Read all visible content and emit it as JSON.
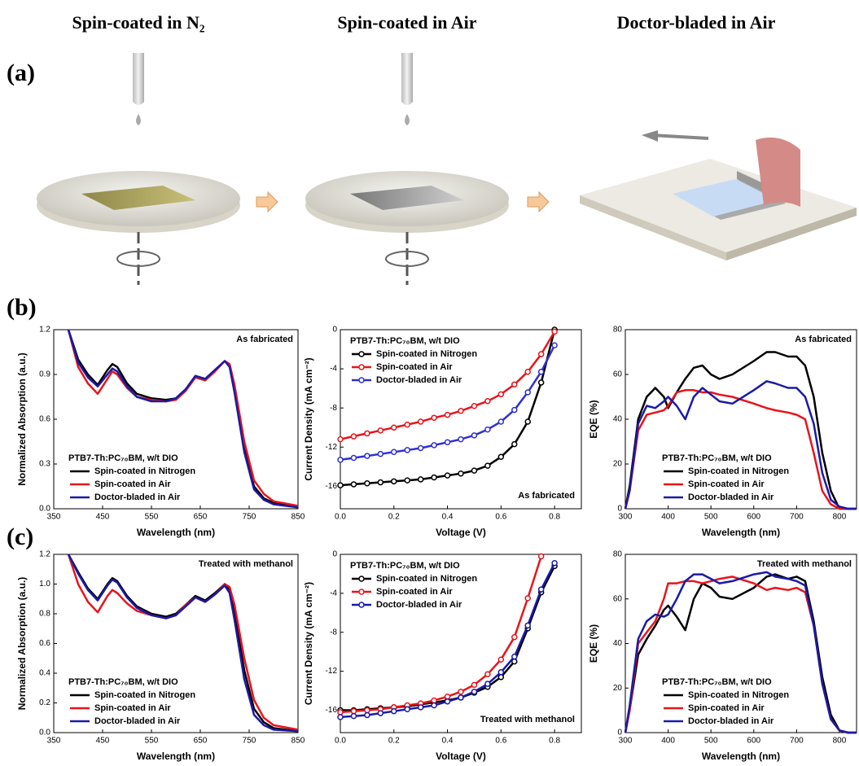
{
  "figure": {
    "headers": [
      "Spin-coated in N₂",
      "Spin-coated in Air",
      "Doctor-bladed in Air"
    ],
    "panel_labels": [
      "(a)",
      "(b)",
      "(c)"
    ]
  },
  "chart_data": [
    {
      "type": "line",
      "xlabel": "Wavelength (nm)",
      "ylabel": "Normalized Absorption (a.u.)",
      "annotation": "As fabricated",
      "legend_title": "PTB7-Th:PC₇₀BM, w/t DIO",
      "legend": "lower left",
      "x": [
        380,
        400,
        420,
        440,
        460,
        470,
        480,
        500,
        520,
        550,
        580,
        600,
        620,
        640,
        660,
        680,
        700,
        710,
        720,
        740,
        760,
        780,
        800,
        850
      ],
      "xlim": [
        350,
        850
      ],
      "xticks": [
        350,
        450,
        550,
        650,
        750,
        850
      ],
      "ylim": [
        0,
        1.2
      ],
      "yticks": [
        {
          "value": 0,
          "label": "0.0"
        },
        0.3,
        0.6,
        0.9,
        1.2
      ],
      "series": [
        {
          "name": "Spin-coated in Nitrogen",
          "color": "#000000",
          "values": [
            1.2,
            1.0,
            0.9,
            0.83,
            0.93,
            0.97,
            0.95,
            0.84,
            0.77,
            0.74,
            0.73,
            0.74,
            0.8,
            0.89,
            0.87,
            0.93,
            0.99,
            0.96,
            0.8,
            0.4,
            0.15,
            0.07,
            0.04,
            0.01
          ]
        },
        {
          "name": "Spin-coated in Air",
          "color": "#e8141b",
          "values": [
            1.2,
            0.95,
            0.84,
            0.77,
            0.87,
            0.92,
            0.9,
            0.81,
            0.75,
            0.73,
            0.72,
            0.73,
            0.79,
            0.88,
            0.86,
            0.92,
            0.99,
            0.97,
            0.83,
            0.45,
            0.19,
            0.1,
            0.05,
            0.02
          ]
        },
        {
          "name": "Doctor-bladed in Air",
          "color": "#1a1aa8",
          "values": [
            1.2,
            0.98,
            0.88,
            0.82,
            0.9,
            0.94,
            0.92,
            0.82,
            0.75,
            0.72,
            0.72,
            0.74,
            0.8,
            0.89,
            0.87,
            0.93,
            0.99,
            0.95,
            0.78,
            0.38,
            0.13,
            0.06,
            0.03,
            0.01
          ]
        }
      ]
    },
    {
      "type": "line",
      "markers": true,
      "xlabel": "Voltage (V)",
      "ylabel": "Current Density (mA cm⁻²)",
      "annotation": "As fabricated",
      "legend_title": "PTB7-Th:PC₇₀BM, w/t DIO",
      "legend": "upper left",
      "x": [
        0,
        0.05,
        0.1,
        0.15,
        0.2,
        0.25,
        0.3,
        0.35,
        0.4,
        0.45,
        0.5,
        0.55,
        0.6,
        0.65,
        0.7,
        0.75,
        0.8
      ],
      "xlim": [
        0,
        0.9
      ],
      "xticks": [
        {
          "value": 0,
          "label": "0.0"
        },
        0.2,
        0.4,
        0.6,
        0.8
      ],
      "ylim": [
        -18.3,
        0
      ],
      "yticks": [
        0,
        -4,
        -8,
        -12,
        -16
      ],
      "series": [
        {
          "name": "Spin-coated in Nitrogen",
          "color": "#000000",
          "values": [
            -15.9,
            -15.8,
            -15.7,
            -15.6,
            -15.5,
            -15.4,
            -15.3,
            -15.1,
            -14.9,
            -14.7,
            -14.4,
            -13.9,
            -13.0,
            -11.7,
            -9.4,
            -5.4,
            0
          ]
        },
        {
          "name": "Spin-coated in Air",
          "color": "#e8141b",
          "values": [
            -11.2,
            -10.9,
            -10.6,
            -10.3,
            -10.0,
            -9.7,
            -9.4,
            -9.0,
            -8.7,
            -8.3,
            -7.8,
            -7.3,
            -6.6,
            -5.6,
            -4.3,
            -2.5,
            -0.2
          ]
        },
        {
          "name": "Doctor-bladed in Air",
          "color": "#3030d0",
          "values": [
            -13.3,
            -13.1,
            -12.9,
            -12.7,
            -12.5,
            -12.3,
            -12.1,
            -11.8,
            -11.5,
            -11.2,
            -10.8,
            -10.2,
            -9.4,
            -8.2,
            -6.4,
            -4.3,
            -1.6
          ]
        }
      ]
    },
    {
      "type": "line",
      "xlabel": "Wavelength (nm)",
      "ylabel": "EQE (%)",
      "annotation": "As fabricated",
      "legend_title": "PTB7-Th:PC₇₀BM, w/t DIO",
      "legend": "lower left",
      "x": [
        300,
        310,
        330,
        350,
        370,
        390,
        400,
        420,
        440,
        460,
        480,
        500,
        520,
        550,
        600,
        630,
        650,
        680,
        700,
        720,
        740,
        760,
        780,
        800,
        820,
        840
      ],
      "xlim": [
        300,
        840
      ],
      "xticks": [
        300,
        400,
        500,
        600,
        700,
        800
      ],
      "ylim": [
        0,
        80
      ],
      "yticks": [
        0,
        20,
        40,
        60,
        80
      ],
      "series": [
        {
          "name": "Spin-coated in Nitrogen",
          "color": "#000000",
          "values": [
            0,
            10,
            40,
            50,
            54,
            50,
            45,
            52,
            58,
            63,
            64,
            60,
            58,
            60,
            66,
            70,
            70,
            68,
            68,
            64,
            50,
            25,
            8,
            0,
            0,
            0
          ]
        },
        {
          "name": "Spin-coated in Air",
          "color": "#e8141b",
          "values": [
            0,
            8,
            35,
            42,
            43,
            44,
            46,
            52,
            53,
            53,
            52,
            52,
            51,
            50,
            47,
            45,
            44,
            43,
            42,
            40,
            25,
            8,
            2,
            0,
            0,
            0
          ]
        },
        {
          "name": "Doctor-bladed in Air",
          "color": "#1a1aa8",
          "values": [
            0,
            8,
            38,
            46,
            45,
            48,
            50,
            46,
            40,
            50,
            54,
            51,
            48,
            47,
            53,
            57,
            56,
            54,
            54,
            50,
            38,
            16,
            4,
            1,
            0,
            0
          ]
        }
      ]
    },
    {
      "type": "line",
      "xlabel": "Wavelength (nm)",
      "ylabel": "Normalized Absorption (a.u.)",
      "annotation": "Treated with methanol",
      "legend_title": "PTB7-Th:PC₇₀BM, w/t DIO",
      "legend": "lower left",
      "x": [
        380,
        400,
        420,
        440,
        460,
        470,
        480,
        500,
        520,
        550,
        580,
        600,
        620,
        640,
        660,
        680,
        700,
        710,
        720,
        740,
        760,
        780,
        800,
        850
      ],
      "xlim": [
        350,
        850
      ],
      "xticks": [
        350,
        450,
        550,
        650,
        750,
        850
      ],
      "ylim": [
        0,
        1.2
      ],
      "yticks": [
        {
          "value": 0,
          "label": "0.0"
        },
        0.2,
        0.4,
        0.6,
        0.8,
        {
          "value": 1,
          "label": "1.0"
        },
        1.2
      ],
      "series": [
        {
          "name": "Spin-coated in Nitrogen",
          "color": "#000000",
          "values": [
            1.2,
            1.08,
            0.97,
            0.9,
            1.0,
            1.04,
            1.02,
            0.92,
            0.85,
            0.8,
            0.78,
            0.8,
            0.86,
            0.92,
            0.89,
            0.94,
            1.0,
            0.96,
            0.8,
            0.42,
            0.16,
            0.07,
            0.03,
            0.01
          ]
        },
        {
          "name": "Spin-coated in Air",
          "color": "#e8141b",
          "values": [
            1.2,
            1.0,
            0.88,
            0.81,
            0.92,
            0.96,
            0.94,
            0.87,
            0.82,
            0.79,
            0.77,
            0.79,
            0.86,
            0.91,
            0.88,
            0.93,
            1.0,
            0.98,
            0.86,
            0.5,
            0.22,
            0.1,
            0.05,
            0.02
          ]
        },
        {
          "name": "Doctor-bladed in Air",
          "color": "#1a1aa8",
          "values": [
            1.2,
            1.07,
            0.96,
            0.89,
            0.99,
            1.03,
            1.01,
            0.91,
            0.84,
            0.79,
            0.77,
            0.79,
            0.85,
            0.91,
            0.88,
            0.93,
            0.99,
            0.94,
            0.76,
            0.36,
            0.12,
            0.05,
            0.02,
            0.01
          ]
        }
      ]
    },
    {
      "type": "line",
      "markers": true,
      "xlabel": "Voltage (V)",
      "ylabel": "Current Density (mA cm⁻²)",
      "annotation": "Treated with methanol",
      "legend_title": "PTB7-Th:PC₇₀BM, w/t DIO",
      "legend": "upper left",
      "x": [
        0,
        0.05,
        0.1,
        0.15,
        0.2,
        0.25,
        0.3,
        0.35,
        0.4,
        0.45,
        0.5,
        0.55,
        0.6,
        0.65,
        0.7,
        0.75,
        0.8
      ],
      "xlim": [
        0,
        0.9
      ],
      "xticks": [
        {
          "value": 0,
          "label": "0.0"
        },
        0.2,
        0.4,
        0.6,
        0.8
      ],
      "ylim": [
        -18.3,
        0
      ],
      "yticks": [
        0,
        -4,
        -8,
        -12,
        -16
      ],
      "series": [
        {
          "name": "Spin-coated in Nitrogen",
          "color": "#000000",
          "values": [
            -16.0,
            -16.0,
            -15.9,
            -15.8,
            -15.7,
            -15.6,
            -15.4,
            -15.2,
            -15.0,
            -14.7,
            -14.2,
            -13.6,
            -12.6,
            -11.0,
            -7.6,
            -3.9,
            -1.2
          ]
        },
        {
          "name": "Spin-coated in Air",
          "color": "#e8141b",
          "values": [
            -16.2,
            -16.1,
            -16.0,
            -15.9,
            -15.7,
            -15.5,
            -15.3,
            -15.0,
            -14.6,
            -14.1,
            -13.4,
            -12.3,
            -10.8,
            -8.5,
            -4.5,
            -0.2,
            null
          ]
        },
        {
          "name": "Doctor-bladed in Air",
          "color": "#1a1aa8",
          "values": [
            -16.7,
            -16.6,
            -16.5,
            -16.3,
            -16.1,
            -15.9,
            -15.7,
            -15.5,
            -15.1,
            -14.7,
            -14.1,
            -13.3,
            -12.1,
            -10.5,
            -7.3,
            -3.6,
            -0.9
          ]
        }
      ]
    },
    {
      "type": "line",
      "xlabel": "Wavelength (nm)",
      "ylabel": "EQE (%)",
      "annotation": "Treated with methanol",
      "legend_title": "PTB7-Th:PC₇₀BM, w/t DIO",
      "legend": "lower left",
      "x": [
        300,
        310,
        330,
        350,
        370,
        390,
        400,
        420,
        440,
        460,
        480,
        500,
        520,
        550,
        600,
        630,
        650,
        680,
        700,
        720,
        740,
        760,
        780,
        800,
        820,
        840
      ],
      "xlim": [
        300,
        840
      ],
      "xticks": [
        300,
        400,
        500,
        600,
        700,
        800
      ],
      "ylim": [
        0,
        80
      ],
      "yticks": [
        0,
        20,
        40,
        60,
        80
      ],
      "series": [
        {
          "name": "Spin-coated in Nitrogen",
          "color": "#000000",
          "values": [
            0,
            10,
            35,
            42,
            48,
            55,
            57,
            52,
            46,
            60,
            67,
            65,
            61,
            60,
            65,
            70,
            71,
            69,
            70,
            68,
            50,
            25,
            8,
            1,
            0,
            0
          ]
        },
        {
          "name": "Spin-coated in Air",
          "color": "#e8141b",
          "values": [
            0,
            10,
            40,
            45,
            50,
            60,
            67,
            67,
            68,
            68,
            67,
            68,
            69,
            70,
            67,
            64,
            65,
            64,
            65,
            63,
            48,
            22,
            6,
            1,
            0,
            0
          ]
        },
        {
          "name": "Doctor-bladed in Air",
          "color": "#1a1aa8",
          "values": [
            0,
            12,
            42,
            50,
            53,
            52,
            53,
            60,
            68,
            71,
            71,
            69,
            67,
            68,
            71,
            72,
            70,
            69,
            68,
            66,
            48,
            22,
            6,
            1,
            0,
            0
          ]
        }
      ]
    }
  ]
}
